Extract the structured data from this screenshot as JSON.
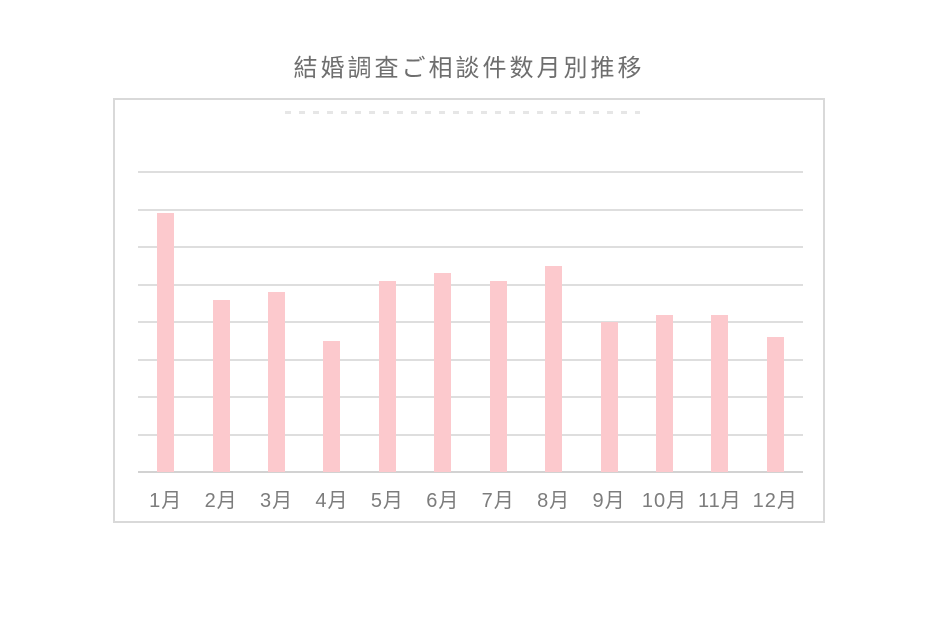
{
  "title": "結婚調査ご相談件数月別推移",
  "chart_data": {
    "type": "bar",
    "title": "結婚調査ご相談件数月別推移",
    "categories": [
      "1月",
      "2月",
      "3月",
      "4月",
      "5月",
      "6月",
      "7月",
      "8月",
      "9月",
      "10月",
      "11月",
      "12月"
    ],
    "values": [
      69,
      46,
      48,
      35,
      51,
      53,
      51,
      55,
      40,
      42,
      42,
      36
    ],
    "xlabel": "",
    "ylabel": "",
    "ylim": [
      0,
      80
    ],
    "gridline_step": 10,
    "y_tick_labels_visible": false,
    "grid": "horizontal",
    "legend_position": "none",
    "colors": {
      "bar": "#fcc9cd",
      "gridline": "#dedede",
      "axis_line": "#d2d2d2",
      "x_labels": "#7c7c7c",
      "title": "#6e6e6e",
      "panel_border": "#d9d9d9",
      "background": "#ffffff"
    }
  }
}
